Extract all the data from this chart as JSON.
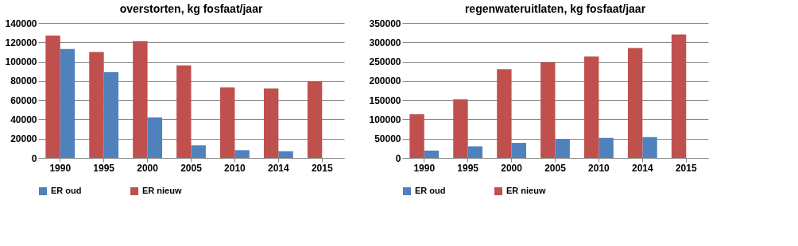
{
  "chart_data": [
    {
      "type": "bar",
      "title": "overstorten, kg fosfaat/jaar",
      "categories": [
        "1990",
        "1995",
        "2000",
        "2005",
        "2010",
        "2014",
        "2015"
      ],
      "series": [
        {
          "name": "ER oud",
          "color": "#4f81bd",
          "values": [
            113000,
            89000,
            42000,
            13000,
            8000,
            7000,
            null
          ]
        },
        {
          "name": "ER nieuw",
          "color": "#c0504d",
          "values": [
            127000,
            110000,
            121000,
            96000,
            73000,
            72000,
            79000
          ]
        }
      ],
      "ylim": [
        0,
        140000
      ],
      "yticks": [
        0,
        20000,
        40000,
        60000,
        80000,
        100000,
        120000,
        140000
      ],
      "grid": "y",
      "legend": "bottom"
    },
    {
      "type": "bar",
      "title": "regenwateruitlaten, kg fosfaat/jaar",
      "categories": [
        "1990",
        "1995",
        "2000",
        "2005",
        "2010",
        "2014",
        "2015"
      ],
      "series": [
        {
          "name": "ER oud",
          "color": "#4f81bd",
          "values": [
            19000,
            30000,
            39000,
            49000,
            52000,
            54000,
            null
          ]
        },
        {
          "name": "ER nieuw",
          "color": "#c0504d",
          "values": [
            113000,
            152000,
            230000,
            248000,
            263000,
            285000,
            320000
          ]
        }
      ],
      "ylim": [
        0,
        350000
      ],
      "yticks": [
        0,
        50000,
        100000,
        150000,
        200000,
        250000,
        300000,
        350000
      ],
      "grid": "y",
      "legend": "bottom"
    }
  ]
}
